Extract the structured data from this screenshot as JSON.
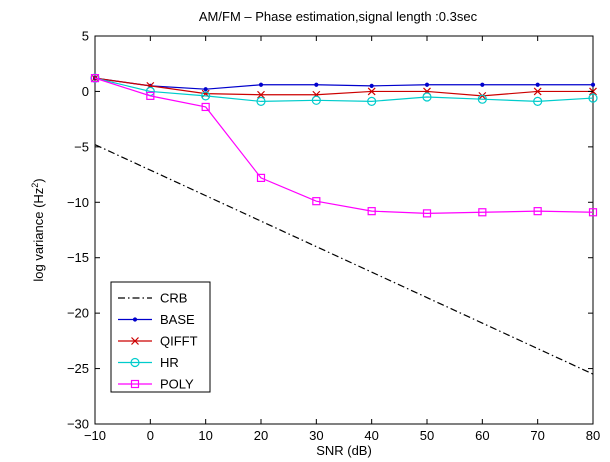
{
  "chart_data": {
    "type": "line",
    "title": "AM/FM – Phase estimation,signal length :0.3sec",
    "xlabel": "SNR (dB)",
    "ylabel_base": "log variance (Hz",
    "ylabel_sup": "2",
    "ylabel_tail": ")",
    "xlim": [
      -10,
      80
    ],
    "ylim": [
      -30,
      5
    ],
    "xticks": [
      -10,
      0,
      10,
      20,
      30,
      40,
      50,
      60,
      70,
      80
    ],
    "yticks": [
      -30,
      -25,
      -20,
      -15,
      -10,
      -5,
      0,
      5
    ],
    "grid": false,
    "legend_position": "bottom-left",
    "series": [
      {
        "name": "CRB",
        "color": "#000000",
        "line": "dashdot",
        "marker": "none",
        "x": [
          -10,
          80
        ],
        "y": [
          -4.8,
          -25.5
        ]
      },
      {
        "name": "BASE",
        "color": "#0000cc",
        "line": "solid",
        "marker": "dot",
        "x": [
          -10,
          0,
          10,
          20,
          30,
          40,
          50,
          60,
          70,
          80
        ],
        "y": [
          1.2,
          0.5,
          0.2,
          0.6,
          0.6,
          0.5,
          0.6,
          0.6,
          0.6,
          0.6
        ]
      },
      {
        "name": "QIFFT",
        "color": "#cc0000",
        "line": "solid",
        "marker": "x",
        "x": [
          -10,
          0,
          10,
          20,
          30,
          40,
          50,
          60,
          70,
          80
        ],
        "y": [
          1.2,
          0.5,
          -0.2,
          -0.3,
          -0.3,
          0.0,
          0.0,
          -0.4,
          0.0,
          0.0
        ]
      },
      {
        "name": "HR",
        "color": "#00cccc",
        "line": "solid",
        "marker": "circle",
        "x": [
          -10,
          0,
          10,
          20,
          30,
          40,
          50,
          60,
          70,
          80
        ],
        "y": [
          1.2,
          0.0,
          -0.4,
          -0.9,
          -0.8,
          -0.9,
          -0.5,
          -0.7,
          -0.9,
          -0.6
        ]
      },
      {
        "name": "POLY",
        "color": "#ff00ff",
        "line": "solid",
        "marker": "square",
        "x": [
          -10,
          0,
          10,
          20,
          30,
          40,
          50,
          60,
          70,
          80
        ],
        "y": [
          1.2,
          -0.4,
          -1.4,
          -7.8,
          -9.9,
          -10.8,
          -11.0,
          -10.9,
          -10.8,
          -10.9
        ]
      }
    ]
  }
}
